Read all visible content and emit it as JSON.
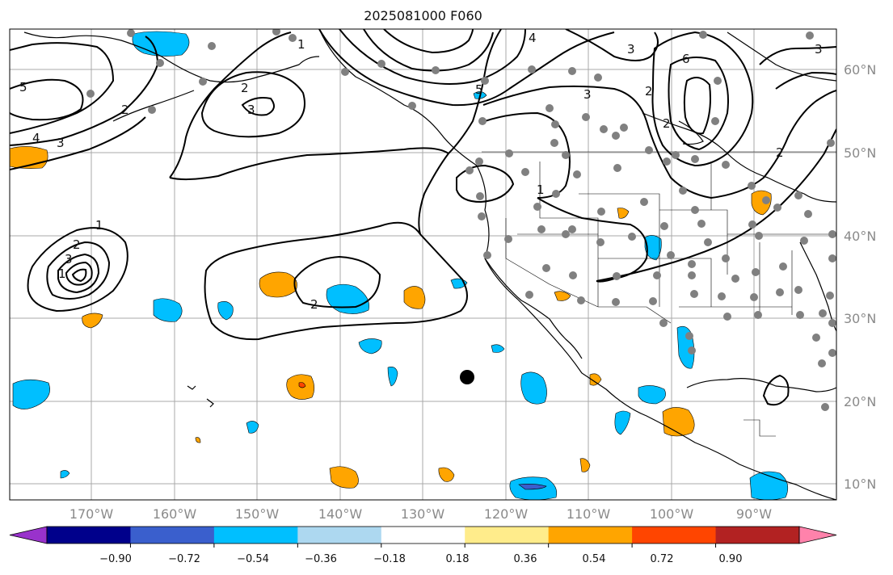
{
  "title": "2025081000 F060",
  "map": {
    "lon_labels": [
      "170°W",
      "160°W",
      "150°W",
      "140°W",
      "130°W",
      "120°W",
      "110°W",
      "100°W",
      "90°W"
    ],
    "lat_labels": [
      "60°N",
      "50°N",
      "40°N",
      "30°N",
      "20°N",
      "10°N"
    ],
    "contour_labels": [
      "5",
      "4",
      "3",
      "2",
      "2",
      "3",
      "1",
      "2",
      "3",
      "1",
      "2",
      "1",
      "5",
      "4",
      "3",
      "3",
      "6",
      "2",
      "2",
      "1",
      "2",
      "3"
    ]
  },
  "colorbar": {
    "ticks": [
      "−0.90",
      "−0.72",
      "−0.54",
      "−0.36",
      "−0.18",
      "0.18",
      "0.36",
      "0.54",
      "0.72",
      "0.90"
    ],
    "colors": [
      "#9932cc",
      "#00008b",
      "#3a5fcd",
      "#00bfff",
      "#add8f0",
      "#ffffff",
      "#ffec8b",
      "#ffa500",
      "#ff4500",
      "#b22222",
      "#ff82ab"
    ]
  }
}
